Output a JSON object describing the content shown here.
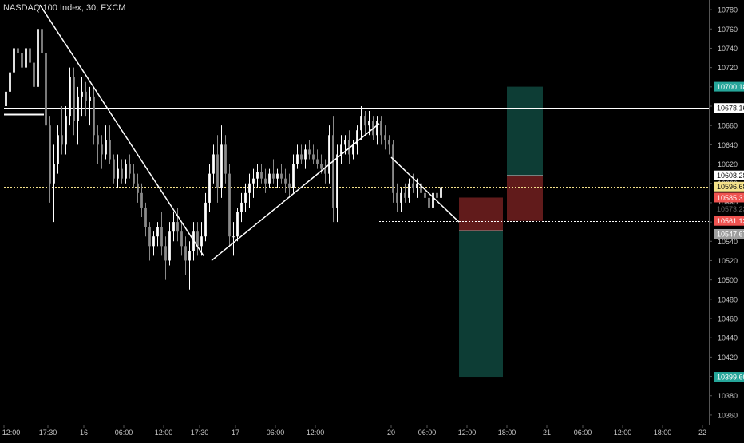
{
  "chart_data": {
    "type": "candlestick",
    "title": "NASDAQ 100 Index, 30, FXCM",
    "ylim": [
      10350,
      10790
    ],
    "y_ticks": [
      10360,
      10380,
      10400,
      10420,
      10440,
      10460,
      10480,
      10500,
      10520,
      10540,
      10560,
      10580,
      10600,
      10620,
      10640,
      10660,
      10680,
      10700,
      10720,
      10740,
      10760,
      10780
    ],
    "x_tick_labels": [
      "12:00",
      "17:30",
      "16",
      "06:00",
      "12:00",
      "17:30",
      "17",
      "06:00",
      "12:00",
      "20",
      "06:00",
      "12:00",
      "18:00",
      "21",
      "06:00",
      "12:00",
      "18:00",
      "22"
    ],
    "x_range_bars": [
      0,
      175
    ],
    "x_tick_bars": [
      0,
      11,
      20,
      30,
      40,
      49,
      58,
      68,
      78,
      97,
      106,
      116,
      126,
      136,
      145,
      155,
      165,
      175
    ],
    "price_labels": [
      {
        "value": "10700.18",
        "price": 10700.18,
        "color": "#26a69a"
      },
      {
        "value": "10678.16",
        "price": 10678.16,
        "color": "#ffffff"
      },
      {
        "value": "10608.28",
        "price": 10608.28,
        "color": "#ffffff"
      },
      {
        "value": "10596.68",
        "price": 10596.68,
        "color": "#f5e28a"
      },
      {
        "value": "10585.31",
        "price": 10585.31,
        "color": "#ef5350"
      },
      {
        "value": "10561.13",
        "price": 10561.13,
        "color": "#ef5350"
      },
      {
        "value": "10547.67",
        "price": 10547.67,
        "color": "#9e9e9e"
      },
      {
        "value": "10399.60",
        "price": 10399.6,
        "color": "#26a69a"
      }
    ],
    "overlap_label": {
      "value": "10573.23",
      "price": 10573.23
    },
    "candles": [
      [
        10680,
        10700,
        10660,
        10695
      ],
      [
        10695,
        10720,
        10690,
        10715
      ],
      [
        10715,
        10770,
        10700,
        10740
      ],
      [
        10740,
        10760,
        10725,
        10735
      ],
      [
        10735,
        10750,
        10715,
        10720
      ],
      [
        10720,
        10745,
        10710,
        10740
      ],
      [
        10740,
        10760,
        10715,
        10725
      ],
      [
        10725,
        10740,
        10690,
        10700
      ],
      [
        10700,
        10770,
        10695,
        10760
      ],
      [
        10760,
        10780,
        10720,
        10735
      ],
      [
        10735,
        10745,
        10650,
        10660
      ],
      [
        10660,
        10670,
        10580,
        10600
      ],
      [
        10600,
        10640,
        10560,
        10620
      ],
      [
        10620,
        10660,
        10610,
        10650
      ],
      [
        10650,
        10680,
        10630,
        10640
      ],
      [
        10640,
        10680,
        10630,
        10670
      ],
      [
        10670,
        10720,
        10660,
        10710
      ],
      [
        10710,
        10720,
        10650,
        10665
      ],
      [
        10665,
        10700,
        10640,
        10690
      ],
      [
        10690,
        10710,
        10670,
        10695
      ],
      [
        10695,
        10705,
        10670,
        10685
      ],
      [
        10685,
        10700,
        10660,
        10690
      ],
      [
        10690,
        10700,
        10640,
        10650
      ],
      [
        10650,
        10660,
        10620,
        10640
      ],
      [
        10640,
        10650,
        10615,
        10630
      ],
      [
        10630,
        10660,
        10625,
        10645
      ],
      [
        10645,
        10660,
        10620,
        10625
      ],
      [
        10625,
        10630,
        10600,
        10605
      ],
      [
        10605,
        10630,
        10595,
        10615
      ],
      [
        10615,
        10625,
        10600,
        10605
      ],
      [
        10605,
        10625,
        10600,
        10620
      ],
      [
        10620,
        10630,
        10605,
        10610
      ],
      [
        10610,
        10620,
        10595,
        10600
      ],
      [
        10600,
        10610,
        10580,
        10590
      ],
      [
        10590,
        10600,
        10565,
        10575
      ],
      [
        10575,
        10580,
        10545,
        10555
      ],
      [
        10555,
        10560,
        10520,
        10535
      ],
      [
        10535,
        10550,
        10525,
        10545
      ],
      [
        10545,
        10560,
        10535,
        10555
      ],
      [
        10555,
        10570,
        10525,
        10535
      ],
      [
        10535,
        10545,
        10500,
        10520
      ],
      [
        10520,
        10560,
        10515,
        10550
      ],
      [
        10550,
        10570,
        10540,
        10560
      ],
      [
        10560,
        10575,
        10540,
        10550
      ],
      [
        10550,
        10560,
        10525,
        10535
      ],
      [
        10535,
        10545,
        10505,
        10520
      ],
      [
        10520,
        10540,
        10490,
        10530
      ],
      [
        10530,
        10560,
        10520,
        10550
      ],
      [
        10550,
        10560,
        10525,
        10535
      ],
      [
        10535,
        10560,
        10525,
        10545
      ],
      [
        10545,
        10590,
        10540,
        10580
      ],
      [
        10580,
        10620,
        10570,
        10610
      ],
      [
        10610,
        10640,
        10600,
        10630
      ],
      [
        10630,
        10650,
        10580,
        10595
      ],
      [
        10595,
        10660,
        10585,
        10640
      ],
      [
        10640,
        10650,
        10600,
        10610
      ],
      [
        10610,
        10620,
        10535,
        10545
      ],
      [
        10545,
        10560,
        10525,
        10545
      ],
      [
        10545,
        10575,
        10540,
        10570
      ],
      [
        10570,
        10590,
        10560,
        10580
      ],
      [
        10580,
        10600,
        10570,
        10590
      ],
      [
        10590,
        10610,
        10575,
        10600
      ],
      [
        10600,
        10615,
        10585,
        10605
      ],
      [
        10605,
        10620,
        10595,
        10612
      ],
      [
        10612,
        10620,
        10600,
        10605
      ],
      [
        10605,
        10615,
        10590,
        10600
      ],
      [
        10600,
        10615,
        10595,
        10610
      ],
      [
        10610,
        10625,
        10600,
        10605
      ],
      [
        10605,
        10615,
        10595,
        10610
      ],
      [
        10610,
        10620,
        10600,
        10605
      ],
      [
        10605,
        10615,
        10590,
        10600
      ],
      [
        10600,
        10610,
        10585,
        10595
      ],
      [
        10595,
        10630,
        10590,
        10620
      ],
      [
        10620,
        10640,
        10615,
        10630
      ],
      [
        10630,
        10640,
        10620,
        10625
      ],
      [
        10625,
        10640,
        10615,
        10635
      ],
      [
        10635,
        10645,
        10625,
        10630
      ],
      [
        10630,
        10640,
        10620,
        10625
      ],
      [
        10625,
        10635,
        10615,
        10620
      ],
      [
        10620,
        10630,
        10610,
        10615
      ],
      [
        10615,
        10625,
        10600,
        10610
      ],
      [
        10610,
        10660,
        10600,
        10650
      ],
      [
        10650,
        10670,
        10560,
        10575
      ],
      [
        10575,
        10640,
        10560,
        10630
      ],
      [
        10630,
        10650,
        10620,
        10640
      ],
      [
        10640,
        10650,
        10630,
        10645
      ],
      [
        10645,
        10655,
        10620,
        10630
      ],
      [
        10630,
        10645,
        10625,
        10640
      ],
      [
        10640,
        10660,
        10630,
        10655
      ],
      [
        10655,
        10680,
        10645,
        10670
      ],
      [
        10670,
        10675,
        10650,
        10660
      ],
      [
        10660,
        10675,
        10650,
        10665
      ],
      [
        10665,
        10670,
        10645,
        10650
      ],
      [
        10650,
        10670,
        10640,
        10665
      ],
      [
        10665,
        10670,
        10640,
        10650
      ],
      [
        10650,
        10660,
        10635,
        10645
      ],
      [
        10645,
        10650,
        10630,
        10640
      ],
      [
        10640,
        10645,
        10580,
        10590
      ],
      [
        10590,
        10600,
        10570,
        10580
      ],
      [
        10580,
        10595,
        10570,
        10590
      ],
      [
        10590,
        10600,
        10580,
        10585
      ],
      [
        10585,
        10605,
        10580,
        10600
      ],
      [
        10600,
        10610,
        10590,
        10595
      ],
      [
        10595,
        10605,
        10585,
        10600
      ],
      [
        10600,
        10605,
        10580,
        10590
      ],
      [
        10590,
        10600,
        10575,
        10585
      ],
      [
        10585,
        10595,
        10560,
        10575
      ],
      [
        10575,
        10595,
        10570,
        10590
      ],
      [
        10590,
        10600,
        10575,
        10585
      ],
      [
        10585,
        10600,
        10580,
        10596
      ]
    ],
    "trend_lines": [
      {
        "from": [
          9,
          10785
        ],
        "to": [
          50,
          10525
        ]
      },
      {
        "from": [
          52,
          10520
        ],
        "to": [
          94,
          10662
        ]
      },
      {
        "from": [
          97,
          10627
        ],
        "to": [
          114,
          10560
        ]
      }
    ],
    "horizontal_lines": [
      {
        "price": 10678.16,
        "x_start_bar": 0,
        "style": "solid",
        "color": "#ffffff"
      },
      {
        "price": 10608.28,
        "x_start_bar": 0,
        "style": "dotted",
        "color": "#ffffff"
      },
      {
        "price": 10596.68,
        "x_start_bar": 0,
        "style": "dotted",
        "color": "#f5e28a"
      },
      {
        "price": 10561.13,
        "x_start_bar": 94,
        "style": "dotted",
        "color": "#ffffff"
      }
    ],
    "level_line": {
      "price": 10672,
      "x_from_bar": 0,
      "x_to_bar": 10
    },
    "positions": [
      {
        "kind": "short",
        "x_from_bar": 114,
        "x_to_bar": 125,
        "entry": 10551,
        "stop": 10585.31,
        "target": 10399.6
      },
      {
        "kind": "long",
        "x_from_bar": 126,
        "x_to_bar": 135,
        "entry": 10608.28,
        "stop": 10561.13,
        "target": 10700.18
      }
    ]
  }
}
